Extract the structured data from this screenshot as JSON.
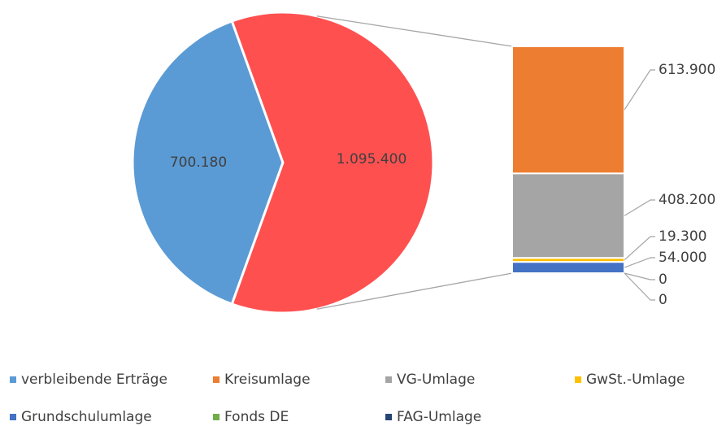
{
  "chart_data": {
    "type": "pie",
    "categories": [
      "verbleibende Erträge",
      "Kreisumlage",
      "VG-Umlage",
      "GwSt.-Umlage",
      "Grundschulumlage",
      "Fonds DE",
      "FAG-Umlage"
    ],
    "colors": [
      "#5b9bd5",
      "#ed7d31",
      "#a5a5a5",
      "#ffc000",
      "#4472c4",
      "#70ad47",
      "#264478"
    ],
    "values": [
      700180,
      613900,
      408200,
      19300,
      54000,
      0,
      0
    ],
    "value_labels": [
      "700.180",
      "613.900",
      "408.200",
      "19.300",
      "54.000",
      "0",
      "0"
    ],
    "other_value": 1095400,
    "other_value_label": "1.095.400",
    "other_color": "#ff5050",
    "legend": "bottom"
  }
}
